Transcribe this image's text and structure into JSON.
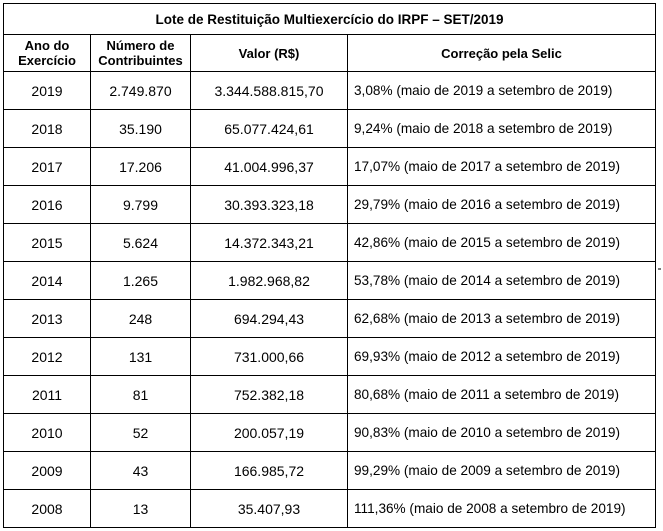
{
  "table": {
    "title": "Lote de Restituição Multiexercício do IRPF – SET/2019",
    "headers": {
      "ano_line1": "Ano do",
      "ano_line2": "Exercício",
      "num_line1": "Número de",
      "num_line2": "Contribuintes",
      "valor": "Valor (R$)",
      "correcao": "Correção pela Selic"
    },
    "rows": [
      {
        "ano": "2019",
        "contribuintes": "2.749.870",
        "valor": "3.344.588.815,70",
        "correcao": "3,08% (maio de 2019 a setembro de 2019)"
      },
      {
        "ano": "2018",
        "contribuintes": "35.190",
        "valor": "65.077.424,61",
        "correcao": "9,24% (maio de 2018 a setembro de 2019)"
      },
      {
        "ano": "2017",
        "contribuintes": "17.206",
        "valor": "41.004.996,37",
        "correcao": "17,07% (maio de 2017 a  setembro de 2019)"
      },
      {
        "ano": "2016",
        "contribuintes": "9.799",
        "valor": "30.393.323,18",
        "correcao": "29,79% (maio de 2016 a setembro  de 2019)"
      },
      {
        "ano": "2015",
        "contribuintes": "5.624",
        "valor": "14.372.343,21",
        "correcao": "42,86% (maio de 2015 a setembro  de 2019)"
      },
      {
        "ano": "2014",
        "contribuintes": "1.265",
        "valor": "1.982.968,82",
        "correcao": "53,78% (maio de 2014 a setembro de 2019)"
      },
      {
        "ano": "2013",
        "contribuintes": "248",
        "valor": "694.294,43",
        "correcao": "62,68% (maio de 2013 a setembro de 2019)"
      },
      {
        "ano": "2012",
        "contribuintes": "131",
        "valor": "731.000,66",
        "correcao": "69,93% (maio de 2012 a setembro de 2019)"
      },
      {
        "ano": "2011",
        "contribuintes": "81",
        "valor": "752.382,18",
        "correcao": "80,68% (maio de 2011 a setembro de 2019)"
      },
      {
        "ano": "2010",
        "contribuintes": "52",
        "valor": "200.057,19",
        "correcao": "90,83% (maio de 2010 a  setembro de 2019)"
      },
      {
        "ano": "2009",
        "contribuintes": "43",
        "valor": "166.985,72",
        "correcao": "99,29% (maio de 2009 a  setembro de 2019)"
      },
      {
        "ano": "2008",
        "contribuintes": "13",
        "valor": "35.407,93",
        "correcao": "111,36% (maio de 2008 a  setembro  de 2019)"
      }
    ]
  }
}
